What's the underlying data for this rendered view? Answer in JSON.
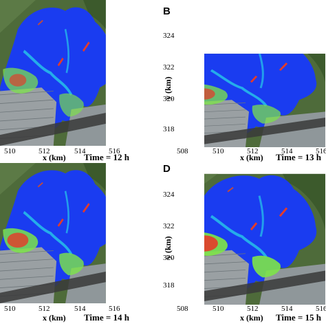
{
  "figure": {
    "panels": [
      {
        "id": "A",
        "letter": "",
        "time": "Time = 12 h",
        "xlabel": "x (km)",
        "ylabel": "",
        "xticks": [
          "510",
          "512",
          "514",
          "516"
        ],
        "yticks": [],
        "flood_intensity": 0.45
      },
      {
        "id": "B",
        "letter": "B",
        "time": "Time = 13 h",
        "xlabel": "x (km)",
        "ylabel": "y (km)",
        "xticks": [
          "508",
          "510",
          "512",
          "514",
          "516"
        ],
        "yticks": [
          "324",
          "322",
          "320",
          "318"
        ],
        "flood_intensity": 0.55
      },
      {
        "id": "C",
        "letter": "",
        "time": "Time = 14 h",
        "xlabel": "x (km)",
        "ylabel": "",
        "xticks": [
          "510",
          "512",
          "514",
          "516"
        ],
        "yticks": [],
        "flood_intensity": 0.7
      },
      {
        "id": "D",
        "letter": "D",
        "time": "Time = 15 h",
        "xlabel": "x (km)",
        "ylabel": "y (km)",
        "xticks": [
          "508",
          "510",
          "512",
          "514",
          "516"
        ],
        "yticks": [
          "324",
          "322",
          "320",
          "318"
        ],
        "flood_intensity": 0.85
      }
    ],
    "colors": {
      "water_low": "#1a3cf0",
      "water_mid": "#27c9e8",
      "water_high": "#7de34a",
      "water_peak": "#e33b2a",
      "terrain": "#4e6b3a",
      "urban": "#9aa0a3",
      "river": "#3a3a3a"
    }
  }
}
